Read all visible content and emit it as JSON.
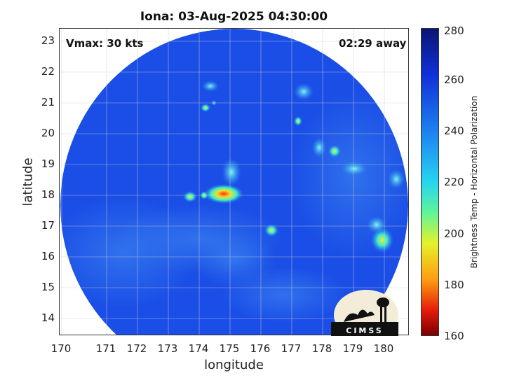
{
  "title": "Iona: 03-Aug-2025 04:30:00",
  "vmax_label": "Vmax: 30 kts",
  "time_away": "02:29 away",
  "x_axis": {
    "label": "longitude",
    "ticks": [
      "170",
      "171",
      "172",
      "173",
      "174",
      "175",
      "176",
      "177",
      "178",
      "179",
      "180"
    ]
  },
  "y_axis": {
    "label": "latitude",
    "ticks": [
      "23",
      "22",
      "21",
      "20",
      "19",
      "18",
      "17",
      "16",
      "15",
      "14"
    ]
  },
  "colorbar": {
    "label": "Brightness Temp - Horizontal Polarization",
    "ticks": [
      "280",
      "260",
      "240",
      "220",
      "200",
      "180",
      "160"
    ]
  },
  "logo_text": "CIMSS",
  "colors": {
    "swath_base": "#1a4ee6",
    "cold_core": "#e01010",
    "warm_frame": "#ffffff"
  }
}
